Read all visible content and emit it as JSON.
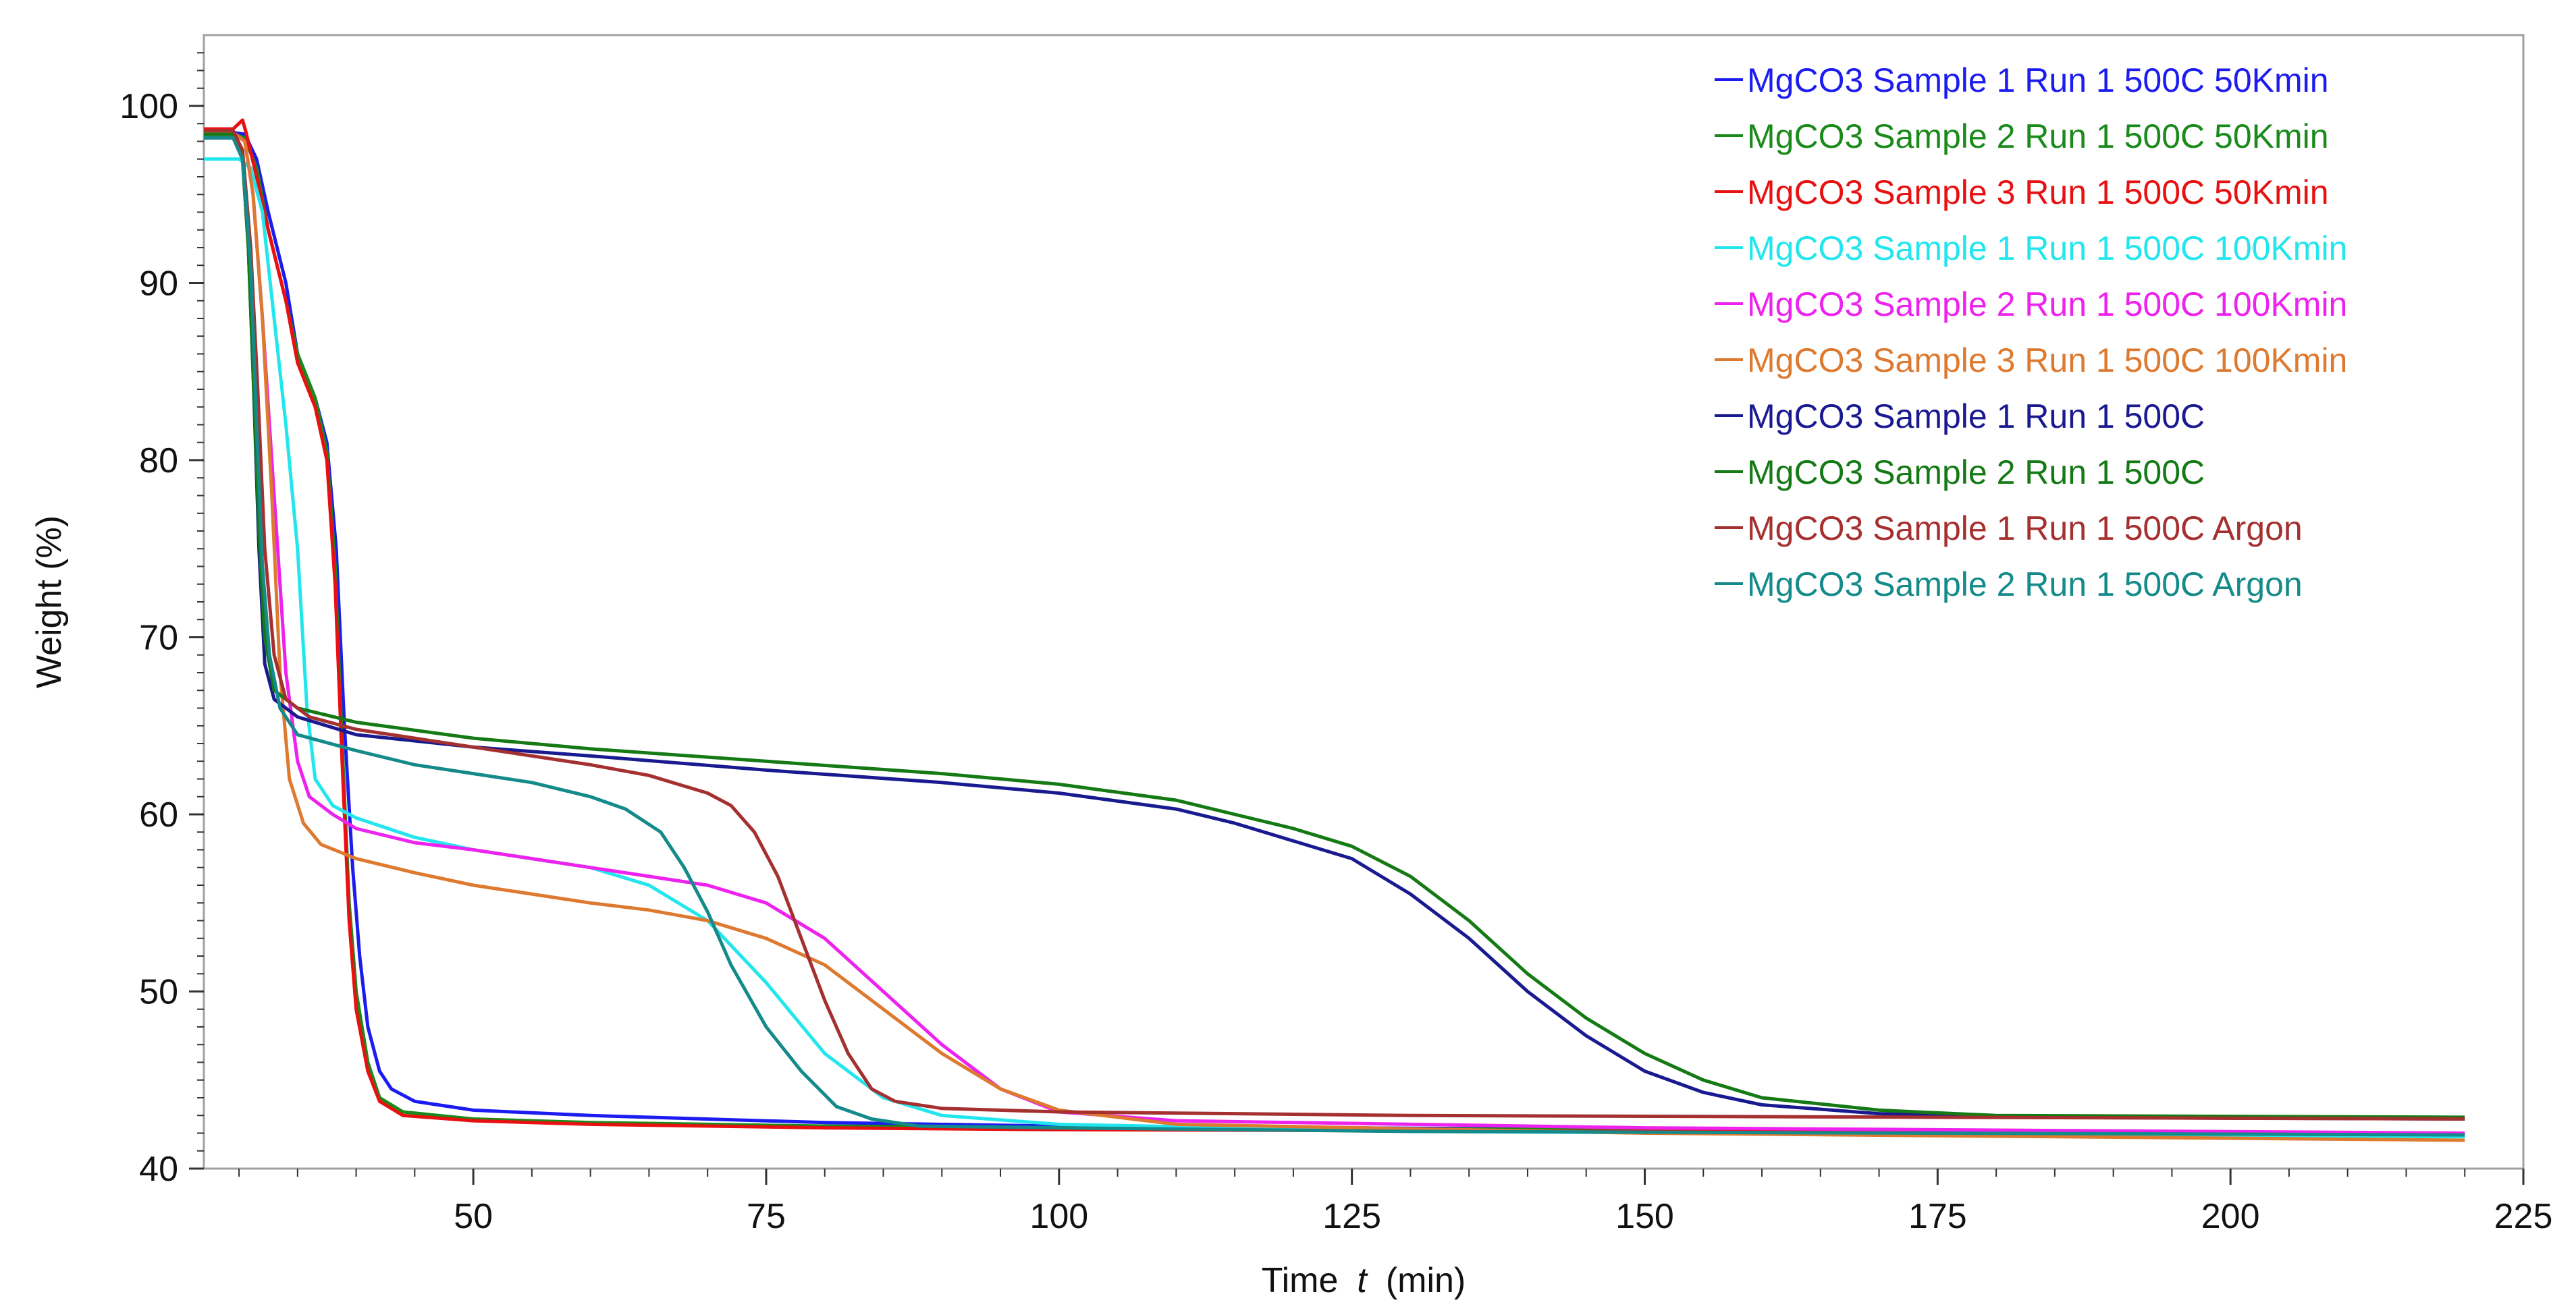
{
  "chart_data": {
    "type": "line",
    "title": "",
    "xlabel_prefix": "Time",
    "xlabel_var": "t",
    "xlabel_unit": "(min)",
    "ylabel": "Weight  (%)",
    "xlim": [
      27,
      225
    ],
    "ylim": [
      40,
      104
    ],
    "xticks": [
      50,
      75,
      100,
      125,
      150,
      175,
      200,
      225
    ],
    "yticks": [
      40,
      50,
      60,
      70,
      80,
      90,
      100
    ],
    "xtick_labels": [
      "50",
      "75",
      "100",
      "125",
      "150",
      "175",
      "200",
      "225"
    ],
    "ytick_labels": [
      "40",
      "50",
      "60",
      "70",
      "80",
      "90",
      "100"
    ],
    "legend_position": "top-right",
    "series": [
      {
        "name": "MgCO3 Sample 1 Run 1 500C 50Kmin",
        "color": "#1c1cf0",
        "points": [
          [
            27,
            98.5
          ],
          [
            29.5,
            98.5
          ],
          [
            30.5,
            98.4
          ],
          [
            31.5,
            97
          ],
          [
            32.5,
            94
          ],
          [
            34,
            90
          ],
          [
            35,
            86
          ],
          [
            36.5,
            83.5
          ],
          [
            37.5,
            81
          ],
          [
            38.3,
            75
          ],
          [
            39,
            65
          ],
          [
            39.7,
            57
          ],
          [
            40.3,
            52
          ],
          [
            41,
            48
          ],
          [
            42,
            45.5
          ],
          [
            43,
            44.5
          ],
          [
            45,
            43.8
          ],
          [
            50,
            43.3
          ],
          [
            60,
            43
          ],
          [
            80,
            42.6
          ],
          [
            100,
            42.4
          ],
          [
            150,
            42.2
          ],
          [
            220,
            41.9
          ]
        ]
      },
      {
        "name": "MgCO3 Sample 2 Run 1 500C 50Kmin",
        "color": "#1a8a1a",
        "points": [
          [
            27,
            98.4
          ],
          [
            29.5,
            98.4
          ],
          [
            30.5,
            98.2
          ],
          [
            31.5,
            96.5
          ],
          [
            32.5,
            93
          ],
          [
            34,
            89
          ],
          [
            35,
            86
          ],
          [
            36.5,
            83.5
          ],
          [
            37.5,
            80.5
          ],
          [
            38.2,
            74
          ],
          [
            38.8,
            64
          ],
          [
            39.4,
            55
          ],
          [
            40,
            50
          ],
          [
            41,
            46
          ],
          [
            42,
            44
          ],
          [
            44,
            43.2
          ],
          [
            50,
            42.8
          ],
          [
            60,
            42.6
          ],
          [
            80,
            42.4
          ],
          [
            100,
            42.3
          ],
          [
            150,
            42.2
          ],
          [
            220,
            42
          ]
        ]
      },
      {
        "name": "MgCO3 Sample 3 Run 1 500C 50Kmin",
        "color": "#e81010",
        "points": [
          [
            27,
            98.7
          ],
          [
            29.5,
            98.7
          ],
          [
            30.3,
            99.2
          ],
          [
            30.6,
            98.5
          ],
          [
            31.5,
            96
          ],
          [
            32.5,
            93
          ],
          [
            34,
            89
          ],
          [
            35,
            85.5
          ],
          [
            36.5,
            83
          ],
          [
            37.5,
            80
          ],
          [
            38.2,
            73
          ],
          [
            38.8,
            63
          ],
          [
            39.4,
            54
          ],
          [
            40,
            49
          ],
          [
            41,
            45.5
          ],
          [
            42,
            43.8
          ],
          [
            44,
            43
          ],
          [
            50,
            42.7
          ],
          [
            60,
            42.5
          ],
          [
            80,
            42.3
          ],
          [
            100,
            42.2
          ],
          [
            150,
            42.1
          ],
          [
            220,
            42
          ]
        ]
      },
      {
        "name": "MgCO3 Sample 1 Run 1 500C 100Kmin",
        "color": "#22e6ee",
        "points": [
          [
            27,
            97
          ],
          [
            30,
            97
          ],
          [
            31,
            96.5
          ],
          [
            32,
            94
          ],
          [
            33,
            88
          ],
          [
            34,
            82
          ],
          [
            35,
            75
          ],
          [
            35.8,
            66
          ],
          [
            36.5,
            62
          ],
          [
            38,
            60.5
          ],
          [
            40,
            59.8
          ],
          [
            45,
            58.7
          ],
          [
            50,
            58
          ],
          [
            55,
            57.5
          ],
          [
            60,
            57
          ],
          [
            65,
            56
          ],
          [
            70,
            54
          ],
          [
            75,
            50.5
          ],
          [
            80,
            46.5
          ],
          [
            85,
            44
          ],
          [
            90,
            43
          ],
          [
            100,
            42.5
          ],
          [
            130,
            42.1
          ],
          [
            220,
            41.8
          ]
        ]
      },
      {
        "name": "MgCO3 Sample 2 Run 1 500C 100Kmin",
        "color": "#ee22ee",
        "points": [
          [
            27,
            98.5
          ],
          [
            29.5,
            98.5
          ],
          [
            30.5,
            98
          ],
          [
            31.2,
            95
          ],
          [
            32,
            88
          ],
          [
            33,
            78
          ],
          [
            34,
            68
          ],
          [
            35,
            63
          ],
          [
            36,
            61
          ],
          [
            38,
            60
          ],
          [
            40,
            59.2
          ],
          [
            45,
            58.4
          ],
          [
            50,
            58
          ],
          [
            55,
            57.5
          ],
          [
            60,
            57
          ],
          [
            65,
            56.5
          ],
          [
            70,
            56
          ],
          [
            75,
            55
          ],
          [
            80,
            53
          ],
          [
            85,
            50
          ],
          [
            90,
            47
          ],
          [
            95,
            44.5
          ],
          [
            100,
            43.2
          ],
          [
            110,
            42.7
          ],
          [
            150,
            42.3
          ],
          [
            220,
            42
          ]
        ]
      },
      {
        "name": "MgCO3 Sample 3 Run 1 500C 100Kmin",
        "color": "#dd7a30",
        "points": [
          [
            27,
            98.5
          ],
          [
            29.5,
            98.5
          ],
          [
            30.5,
            98
          ],
          [
            31.2,
            95
          ],
          [
            32,
            88
          ],
          [
            32.8,
            78
          ],
          [
            33.5,
            68
          ],
          [
            34.3,
            62
          ],
          [
            35.5,
            59.5
          ],
          [
            37,
            58.3
          ],
          [
            40,
            57.5
          ],
          [
            45,
            56.7
          ],
          [
            50,
            56
          ],
          [
            55,
            55.5
          ],
          [
            60,
            55
          ],
          [
            65,
            54.6
          ],
          [
            70,
            54
          ],
          [
            75,
            53
          ],
          [
            80,
            51.5
          ],
          [
            85,
            49
          ],
          [
            90,
            46.5
          ],
          [
            95,
            44.5
          ],
          [
            100,
            43.3
          ],
          [
            110,
            42.5
          ],
          [
            150,
            42
          ],
          [
            220,
            41.6
          ]
        ]
      },
      {
        "name": "MgCO3 Sample 1 Run 1 500C",
        "color": "#1a1a90",
        "points": [
          [
            27,
            98.2
          ],
          [
            29.5,
            98.2
          ],
          [
            30.3,
            97
          ],
          [
            30.8,
            92
          ],
          [
            31.2,
            85
          ],
          [
            31.7,
            75
          ],
          [
            32.2,
            68.5
          ],
          [
            33,
            66.5
          ],
          [
            35,
            65.5
          ],
          [
            40,
            64.5
          ],
          [
            50,
            63.8
          ],
          [
            60,
            63.3
          ],
          [
            75,
            62.5
          ],
          [
            90,
            61.8
          ],
          [
            100,
            61.2
          ],
          [
            110,
            60.3
          ],
          [
            115,
            59.5
          ],
          [
            120,
            58.5
          ],
          [
            125,
            57.5
          ],
          [
            130,
            55.5
          ],
          [
            135,
            53
          ],
          [
            140,
            50
          ],
          [
            145,
            47.5
          ],
          [
            150,
            45.5
          ],
          [
            155,
            44.3
          ],
          [
            160,
            43.6
          ],
          [
            170,
            43.1
          ],
          [
            180,
            42.9
          ],
          [
            220,
            42.8
          ]
        ]
      },
      {
        "name": "MgCO3 Sample 2 Run 1 500C",
        "color": "#157a15",
        "points": [
          [
            27,
            98.4
          ],
          [
            29.5,
            98.4
          ],
          [
            30.3,
            97
          ],
          [
            30.8,
            92
          ],
          [
            31.2,
            85
          ],
          [
            31.7,
            76
          ],
          [
            32.2,
            70
          ],
          [
            33,
            67
          ],
          [
            35,
            66
          ],
          [
            40,
            65.2
          ],
          [
            50,
            64.3
          ],
          [
            60,
            63.7
          ],
          [
            75,
            63
          ],
          [
            90,
            62.3
          ],
          [
            100,
            61.7
          ],
          [
            110,
            60.8
          ],
          [
            115,
            60
          ],
          [
            120,
            59.2
          ],
          [
            125,
            58.2
          ],
          [
            130,
            56.5
          ],
          [
            135,
            54
          ],
          [
            140,
            51
          ],
          [
            145,
            48.5
          ],
          [
            150,
            46.5
          ],
          [
            155,
            45
          ],
          [
            160,
            44
          ],
          [
            170,
            43.3
          ],
          [
            180,
            43
          ],
          [
            220,
            42.9
          ]
        ]
      },
      {
        "name": "MgCO3 Sample 1 Run 1 500C Argon",
        "color": "#a53030",
        "points": [
          [
            27,
            98.6
          ],
          [
            29.5,
            98.6
          ],
          [
            30.3,
            97.5
          ],
          [
            31,
            92
          ],
          [
            31.6,
            84
          ],
          [
            32.2,
            75
          ],
          [
            33,
            69
          ],
          [
            34,
            66.5
          ],
          [
            36,
            65.5
          ],
          [
            40,
            64.8
          ],
          [
            45,
            64.3
          ],
          [
            50,
            63.8
          ],
          [
            55,
            63.3
          ],
          [
            60,
            62.8
          ],
          [
            65,
            62.2
          ],
          [
            70,
            61.2
          ],
          [
            72,
            60.5
          ],
          [
            74,
            59
          ],
          [
            76,
            56.5
          ],
          [
            78,
            53
          ],
          [
            80,
            49.5
          ],
          [
            82,
            46.5
          ],
          [
            84,
            44.5
          ],
          [
            86,
            43.8
          ],
          [
            90,
            43.4
          ],
          [
            100,
            43.2
          ],
          [
            130,
            43
          ],
          [
            220,
            42.8
          ]
        ]
      },
      {
        "name": "MgCO3 Sample 2 Run 1 500C Argon",
        "color": "#158a8a",
        "points": [
          [
            27,
            98.2
          ],
          [
            29.5,
            98.2
          ],
          [
            30.3,
            97
          ],
          [
            31,
            91
          ],
          [
            31.5,
            82
          ],
          [
            32,
            74
          ],
          [
            32.6,
            69
          ],
          [
            33.5,
            66
          ],
          [
            35,
            64.5
          ],
          [
            40,
            63.6
          ],
          [
            45,
            62.8
          ],
          [
            50,
            62.3
          ],
          [
            55,
            61.8
          ],
          [
            60,
            61
          ],
          [
            63,
            60.3
          ],
          [
            66,
            59
          ],
          [
            68,
            57
          ],
          [
            70,
            54.5
          ],
          [
            72,
            51.5
          ],
          [
            75,
            48
          ],
          [
            78,
            45.5
          ],
          [
            81,
            43.5
          ],
          [
            84,
            42.8
          ],
          [
            88,
            42.4
          ],
          [
            100,
            42.3
          ],
          [
            130,
            42.1
          ],
          [
            220,
            41.9
          ]
        ]
      }
    ]
  }
}
